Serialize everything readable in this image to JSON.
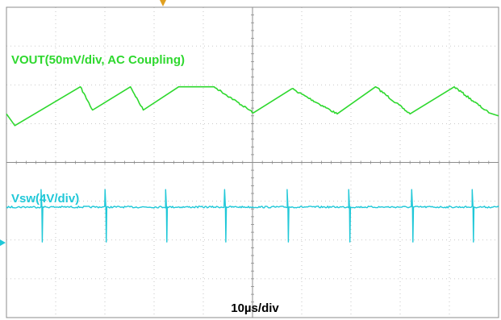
{
  "scope": {
    "colors": {
      "background": "#ffffff",
      "grid": "#b8b8b8",
      "frame": "#8c8c8c",
      "vout": "#2ed82e",
      "vsw": "#20c8d8",
      "trigger": "#e0a020"
    },
    "timebase_label": "10µs/div"
  },
  "chart_data": {
    "type": "line",
    "title": "",
    "xlabel": "10µs/div",
    "ylabel": "",
    "grid": true,
    "divisions": {
      "x": 10,
      "y": 8
    },
    "series": [
      {
        "name": "VOUT(50mV/div, AC Coupling)",
        "color": "#2ed82e",
        "waveform": "sawtooth",
        "x_div": [
          0.0,
          0.17,
          1.5,
          1.75,
          2.52,
          2.78,
          3.5,
          4.22,
          5.02,
          5.8,
          6.72,
          7.5,
          8.2,
          9.1,
          9.8,
          10.0
        ],
        "y_div": [
          5.25,
          4.95,
          5.95,
          5.35,
          5.95,
          5.35,
          5.95,
          5.95,
          5.28,
          5.9,
          5.25,
          5.95,
          5.25,
          5.95,
          5.28,
          5.2
        ]
      },
      {
        "name": "Vsw(4V/div)",
        "color": "#20c8d8",
        "waveform": "pulse",
        "baseline_div": 2.85,
        "spike_high_div": 3.3,
        "spike_low_div": 1.95,
        "spike_x_div": [
          0.72,
          2.02,
          3.25,
          4.45,
          5.72,
          6.97,
          8.25,
          9.48
        ]
      }
    ]
  }
}
